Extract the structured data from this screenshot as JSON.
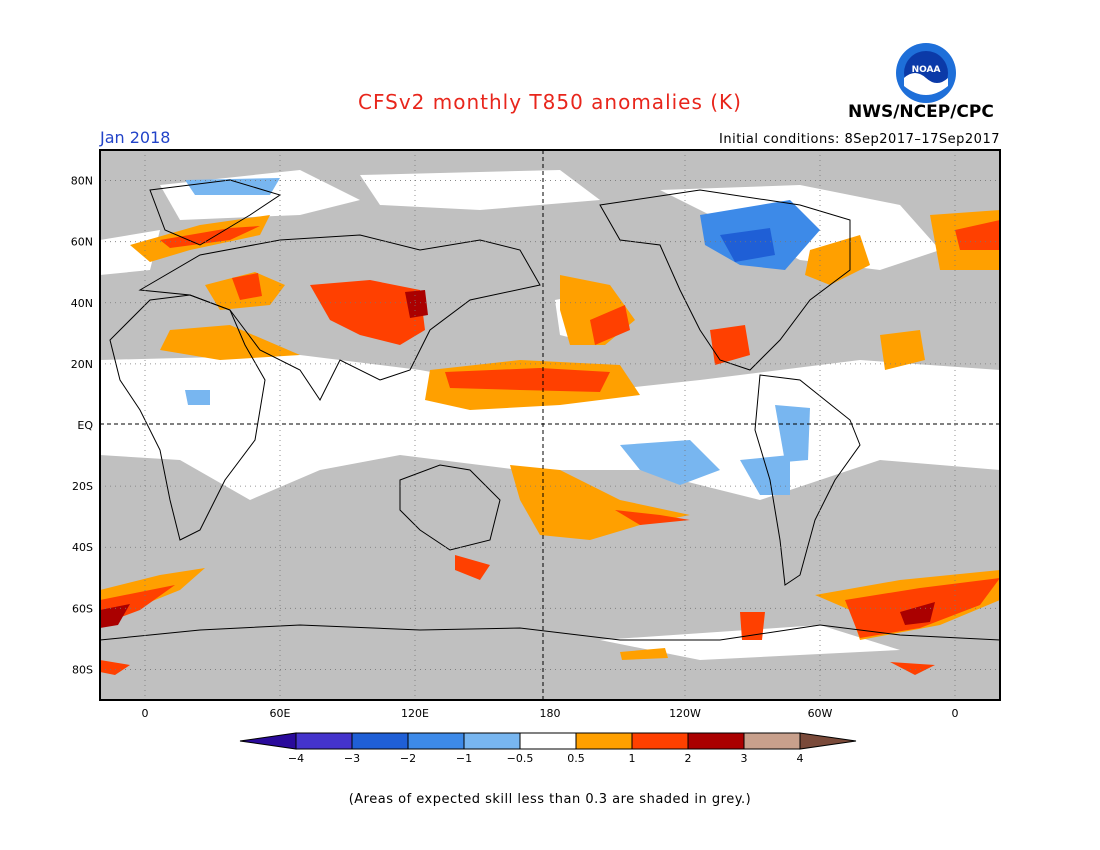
{
  "title": "CFSv2 monthly T850 anomalies (K)",
  "month": "Jan 2018",
  "initial_conditions": "Initial conditions: 8Sep2017–17Sep2017",
  "agency": "NWS/NCEP/CPC",
  "logo_text": "NOAA",
  "footnote": "(Areas of expected skill less than 0.3 are shaded in grey.)",
  "lat_labels": [
    "80N",
    "60N",
    "40N",
    "20N",
    "EQ",
    "20S",
    "40S",
    "60S",
    "80S"
  ],
  "lat_values": [
    80,
    60,
    40,
    20,
    0,
    -20,
    -40,
    -60,
    -80
  ],
  "lon_labels": [
    "0",
    "60E",
    "120E",
    "180",
    "120W",
    "60W",
    "0"
  ],
  "lon_values": [
    0,
    60,
    120,
    180,
    240,
    300,
    360
  ],
  "legend": {
    "labels": [
      "−4",
      "−3",
      "−2",
      "−1",
      "−0.5",
      "0.5",
      "1",
      "2",
      "3",
      "4"
    ],
    "colors": [
      "#2a0a9b",
      "#4433cc",
      "#1f5fd6",
      "#3d8ae8",
      "#78b6f0",
      "#ffffff",
      "#ffa000",
      "#ff4000",
      "#aa0000",
      "#c8a08c",
      "#7a4a3a"
    ]
  },
  "colors": {
    "grey": "#c0c0c0",
    "white": "#ffffff",
    "orange": "#ffa000",
    "red": "#ff4000",
    "darkred": "#aa0000",
    "lightblue": "#78b6f0",
    "blue": "#3d8ae8",
    "medblue": "#1f5fd6"
  }
}
